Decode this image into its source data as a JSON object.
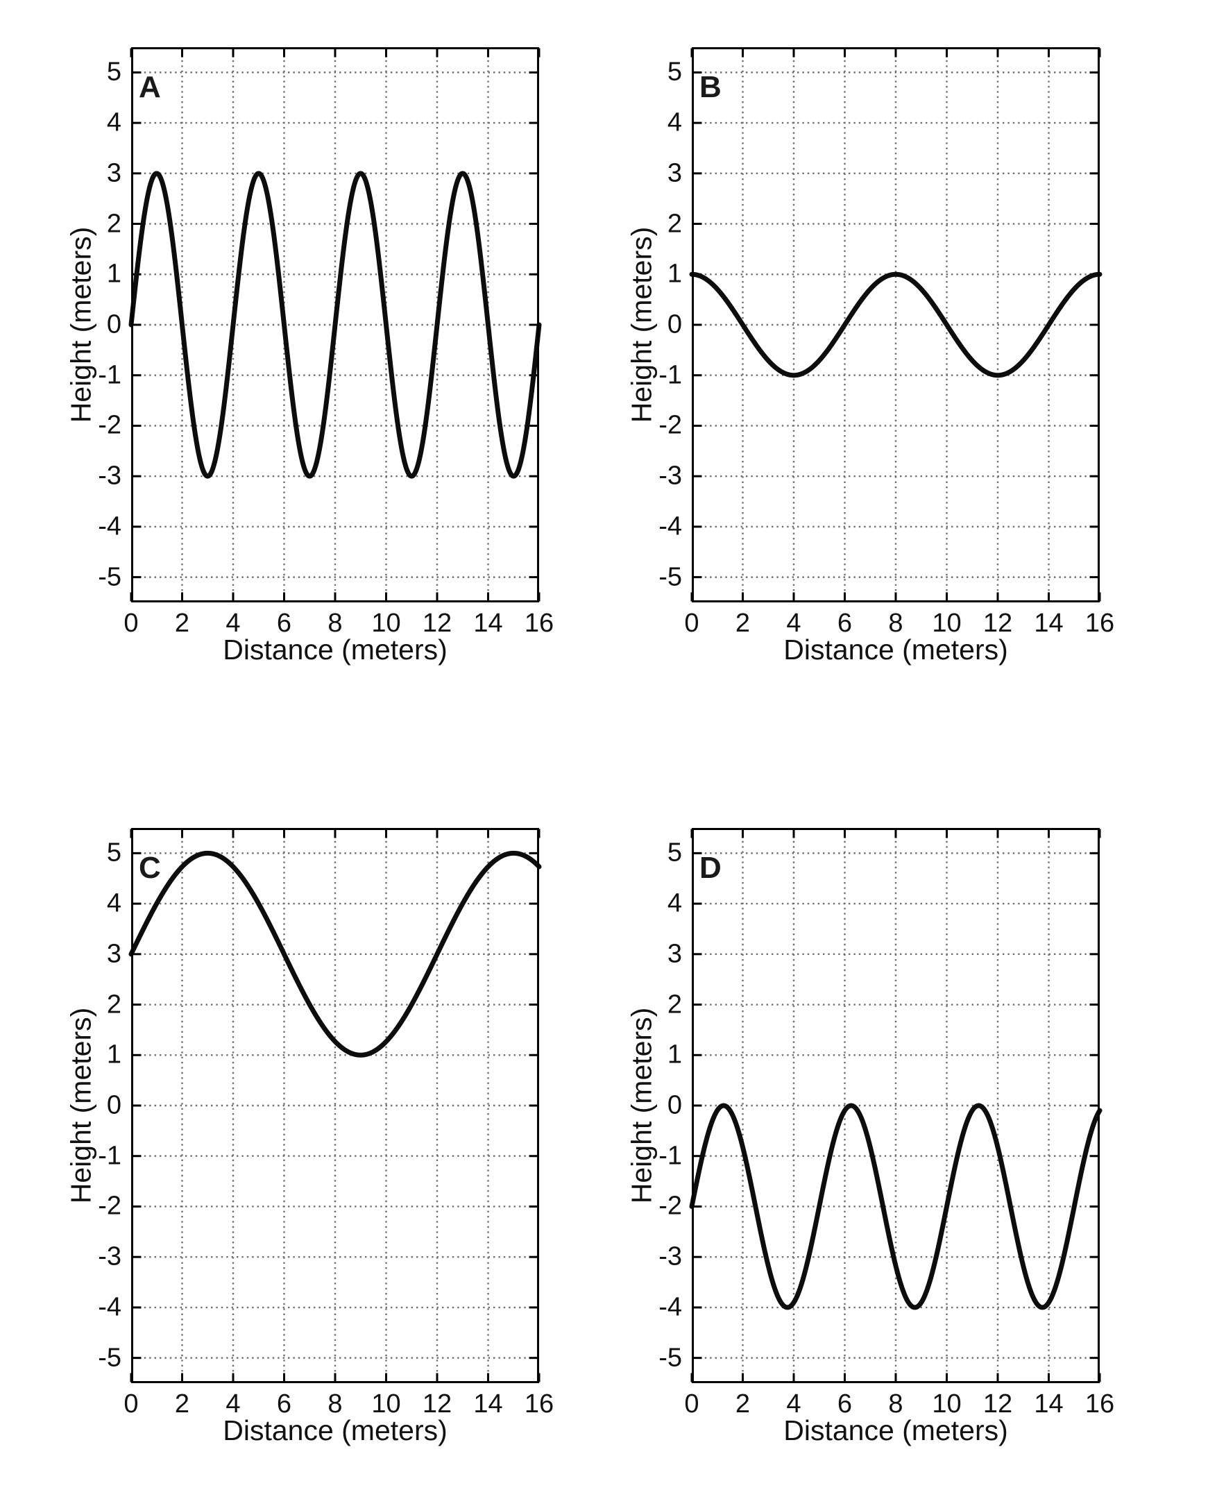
{
  "figure": {
    "bg_color": "#ffffff",
    "axis_color": "#000000",
    "grid_color": "#6f6f6f",
    "curve_color": "#0d0d0d",
    "xlabel": "Distance (meters)",
    "ylabel": "Height (meters)",
    "panel_labels": [
      "A",
      "B",
      "C",
      "D"
    ]
  },
  "axes": {
    "xlim": [
      0,
      16
    ],
    "ylim": [
      -5.5,
      5.5
    ],
    "x_ticks": [
      "0",
      "2",
      "4",
      "6",
      "8",
      "10",
      "12",
      "14",
      "16"
    ],
    "y_ticks": [
      "5",
      "4",
      "3",
      "2",
      "1",
      "0",
      "-1",
      "-2",
      "-3",
      "-4",
      "-5"
    ],
    "grid_style": "dotted"
  },
  "chart_data": [
    {
      "type": "line",
      "panel_label": "A",
      "xlabel": "Distance (meters)",
      "ylabel": "Height (meters)",
      "waveform": "sin",
      "equation": "y = 3·sin(2πx/4)",
      "midline_m": 0,
      "amplitude_m": 3,
      "wavelength_m": 4,
      "x_range_m": [
        0,
        16
      ],
      "xlim": [
        0,
        16
      ],
      "ylim": [
        -5.5,
        5.5
      ],
      "y_start": 0,
      "y_end": 0,
      "peak_y": 3,
      "peak_x": [
        1,
        5,
        9,
        13
      ],
      "trough_y": -3,
      "trough_x": [
        3,
        7,
        11,
        15
      ]
    },
    {
      "type": "line",
      "panel_label": "B",
      "xlabel": "Distance (meters)",
      "ylabel": "Height (meters)",
      "waveform": "cos",
      "equation": "y = 1·cos(2πx/8)",
      "midline_m": 0,
      "amplitude_m": 1,
      "wavelength_m": 8,
      "x_range_m": [
        0,
        16
      ],
      "xlim": [
        0,
        16
      ],
      "ylim": [
        -5.5,
        5.5
      ],
      "y_start": 1,
      "y_end": 1,
      "peak_y": 1,
      "peak_x": [
        0,
        8,
        16
      ],
      "trough_y": -1,
      "trough_x": [
        4,
        12
      ]
    },
    {
      "type": "line",
      "panel_label": "C",
      "xlabel": "Distance (meters)",
      "ylabel": "Height (meters)",
      "waveform": "sin",
      "equation": "y = 3 + 2·sin(2πx/12)",
      "midline_m": 3,
      "amplitude_m": 2,
      "wavelength_m": 12,
      "x_range_m": [
        0,
        16
      ],
      "xlim": [
        0,
        16
      ],
      "ylim": [
        -5.5,
        5.5
      ],
      "y_start": 3,
      "y_end": 4.73,
      "peak_y": 5,
      "peak_x": [
        3,
        15
      ],
      "trough_y": 1,
      "trough_x": [
        9
      ]
    },
    {
      "type": "line",
      "panel_label": "D",
      "xlabel": "Distance (meters)",
      "ylabel": "Height (meters)",
      "waveform": "sin",
      "equation": "y = -2 + 2·sin(2πx/5)",
      "midline_m": -2,
      "amplitude_m": 2,
      "wavelength_m": 5,
      "x_range_m": [
        0,
        16
      ],
      "xlim": [
        0,
        16
      ],
      "ylim": [
        -5.5,
        5.5
      ],
      "y_start": -2,
      "y_end": -0.1,
      "peak_y": 0,
      "peak_x": [
        1.25,
        6.25,
        11.25
      ],
      "trough_y": -4,
      "trough_x": [
        3.75,
        8.75,
        13.75
      ]
    }
  ]
}
